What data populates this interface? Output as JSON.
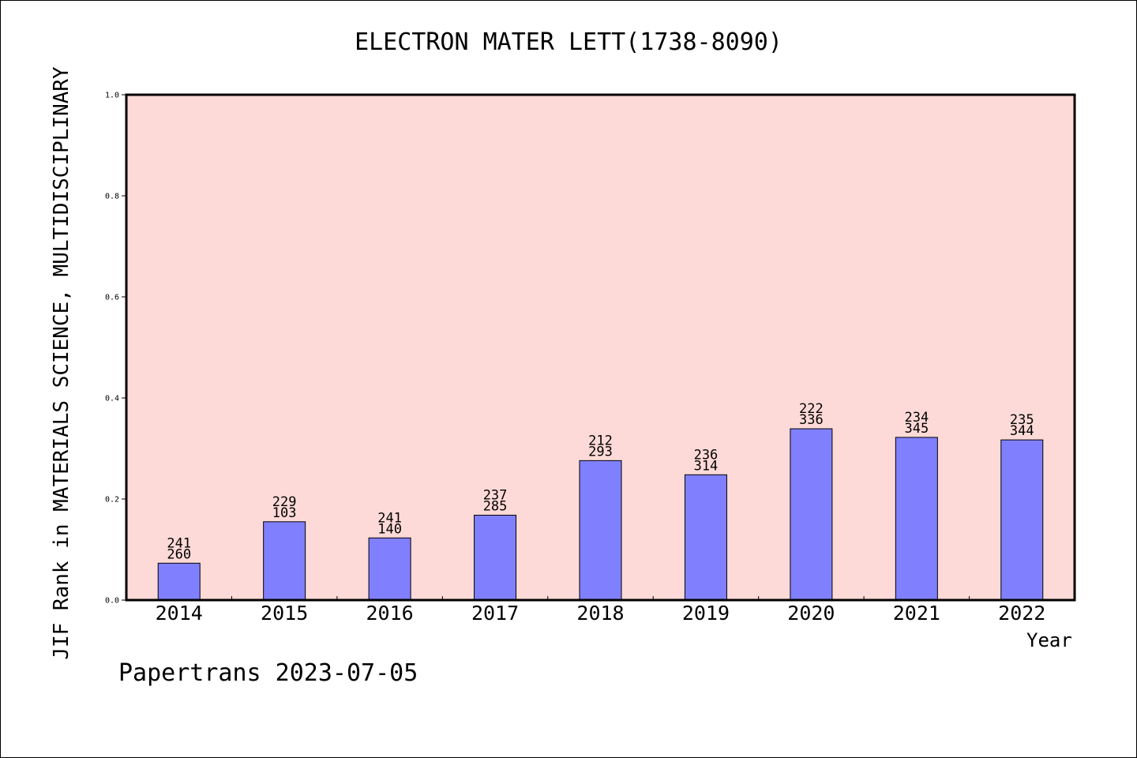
{
  "chart_data": {
    "type": "bar",
    "title": "ELECTRON MATER LETT(1738-8090)",
    "ylabel": "JIF Rank in MATERIALS SCIENCE, MULTIDISCIPLINARY",
    "xlabel": "Year",
    "ylim": [
      0,
      1.0
    ],
    "yticks": [
      "0.0",
      "0.2",
      "0.4",
      "0.6",
      "0.8",
      "1.0"
    ],
    "grid": false,
    "categories": [
      "2014",
      "2015",
      "2016",
      "2017",
      "2018",
      "2019",
      "2020",
      "2021",
      "2022"
    ],
    "values": [
      0.073,
      0.155,
      0.123,
      0.168,
      0.276,
      0.248,
      0.339,
      0.322,
      0.317
    ],
    "label_top": [
      "241",
      "229",
      "241",
      "237",
      "212",
      "236",
      "222",
      "234",
      "235"
    ],
    "label_bottom": [
      "260",
      "103",
      "140",
      "285",
      "293",
      "314",
      "336",
      "345",
      "344"
    ],
    "colors": {
      "plot_background": "#fddad7",
      "bar_fill": "#8080ff",
      "bar_stroke": "#000000"
    }
  },
  "footer": "Papertrans 2023-07-05"
}
